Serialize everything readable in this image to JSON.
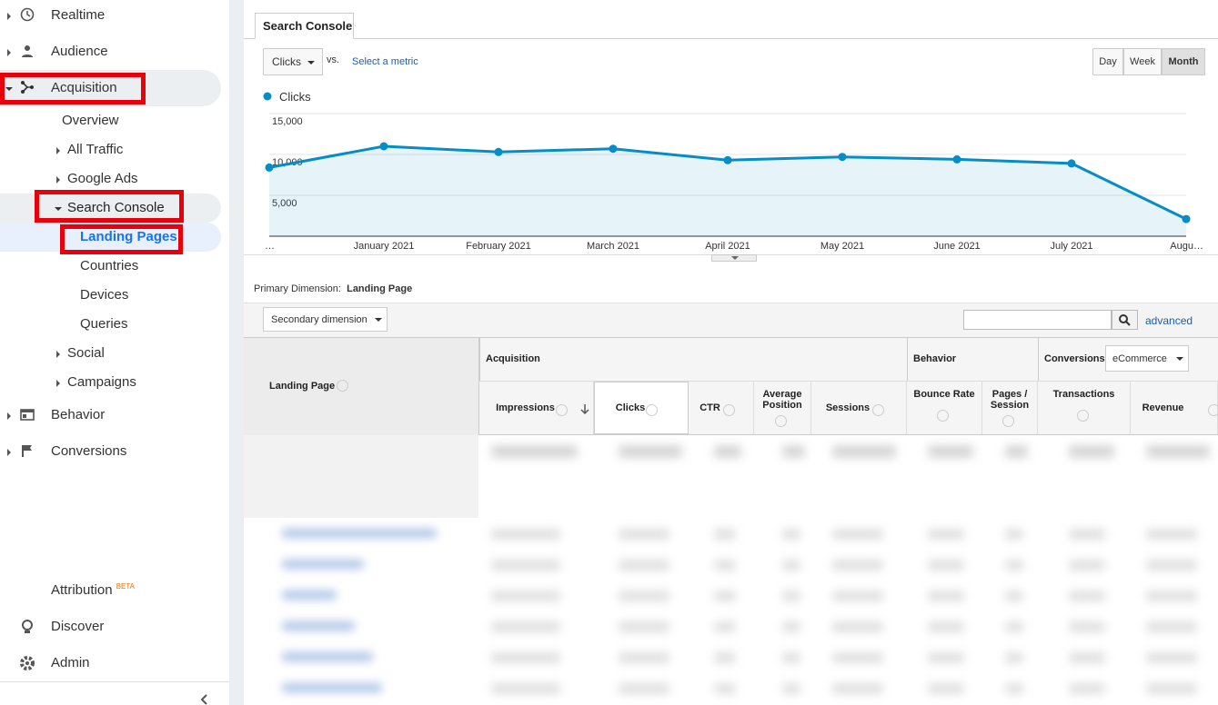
{
  "sidebar": {
    "items": [
      "Realtime",
      "Audience",
      "Acquisition",
      "Overview",
      "All Traffic",
      "Google Ads",
      "Search Console",
      "Landing Pages",
      "Countries",
      "Devices",
      "Queries",
      "Social",
      "Campaigns",
      "Behavior",
      "Conversions"
    ],
    "attribution": "Attribution",
    "beta": "BETA",
    "discover": "Discover",
    "admin": "Admin"
  },
  "tab": "Search Console",
  "controls": {
    "metric": "Clicks",
    "vs": "vs.",
    "select_metric": "Select a metric",
    "periods": [
      "Day",
      "Week",
      "Month"
    ]
  },
  "chart_data": {
    "type": "line",
    "categories": [
      "…",
      "January 2021",
      "February 2021",
      "March 2021",
      "April 2021",
      "May 2021",
      "June 2021",
      "July 2021",
      "Augu…"
    ],
    "series": [
      {
        "name": "Clicks",
        "color": "#058dc7",
        "values": [
          8400,
          11000,
          10300,
          10700,
          9300,
          9700,
          9400,
          8900,
          2100
        ]
      }
    ],
    "ylim": [
      0,
      15000
    ],
    "yticks": [
      {
        "value": 5000,
        "label": "5,000"
      },
      {
        "value": 10000,
        "label": "10,000"
      },
      {
        "value": 15000,
        "label": "15,000"
      }
    ],
    "grid": true
  },
  "primary_dimension": {
    "label": "Primary Dimension:",
    "value": "Landing Page"
  },
  "secondary_dimension": "Secondary dimension",
  "advanced": "advanced",
  "table": {
    "dimension": "Landing Page",
    "groups": [
      "Acquisition",
      "Behavior",
      "Conversions"
    ],
    "conversion_select": "eCommerce",
    "columns": [
      "Impressions",
      "Clicks",
      "CTR",
      "Average Position",
      "Sessions",
      "Bounce Rate",
      "Pages / Session",
      "Transactions",
      "Revenue"
    ]
  }
}
